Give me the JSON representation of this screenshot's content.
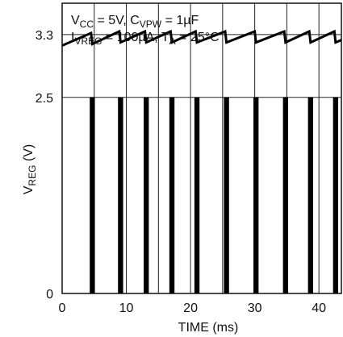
{
  "chart_data": {
    "type": "line",
    "annotations": [
      {
        "base": "V",
        "sub": "CC",
        "mid": " = 5V, C",
        "sub2": "VPW",
        "tail": " = 1µF"
      },
      {
        "base": "I",
        "sub": "VREG",
        "mid": " = 100µA, T",
        "sub2": "A",
        "tail": " = 25°C"
      }
    ],
    "ylabel": {
      "base": "V",
      "sub": "REG",
      "tail": " (V)"
    },
    "xlabel": "TIME (ms)",
    "xlim": [
      0,
      43.5
    ],
    "ylim": [
      0,
      3.7
    ],
    "x_ticks": [
      0,
      10,
      20,
      30,
      40
    ],
    "y_ticks": [
      {
        "value": 0,
        "label": "0"
      },
      {
        "value": 2.5,
        "label": "2.5"
      },
      {
        "value": 3.3,
        "label": "3.3"
      }
    ],
    "grid": true,
    "series": [
      {
        "kind": "sawtooth",
        "x": [
          0,
          4.5,
          4.7,
          8.9,
          9.1,
          12.9,
          13.1,
          16.9,
          17.1,
          20.8,
          21.0,
          25.4,
          25.6,
          30.0,
          30.2,
          34.6,
          34.8,
          38.5,
          38.7,
          42.4,
          42.6,
          43.5
        ],
        "y": [
          3.16,
          3.32,
          3.18,
          3.34,
          3.2,
          3.34,
          3.2,
          3.34,
          3.2,
          3.34,
          3.2,
          3.34,
          3.2,
          3.34,
          3.2,
          3.34,
          3.2,
          3.34,
          3.2,
          3.34,
          3.2,
          3.23
        ]
      },
      {
        "kind": "pulses",
        "high": 2.5,
        "low": 0,
        "x_start": [
          4.3,
          8.7,
          12.7,
          16.7,
          20.6,
          25.2,
          29.8,
          34.4,
          38.3,
          42.2
        ],
        "x_end": [
          5.1,
          9.5,
          13.5,
          17.5,
          21.4,
          26.0,
          30.6,
          35.2,
          39.1,
          43.0
        ]
      }
    ]
  }
}
